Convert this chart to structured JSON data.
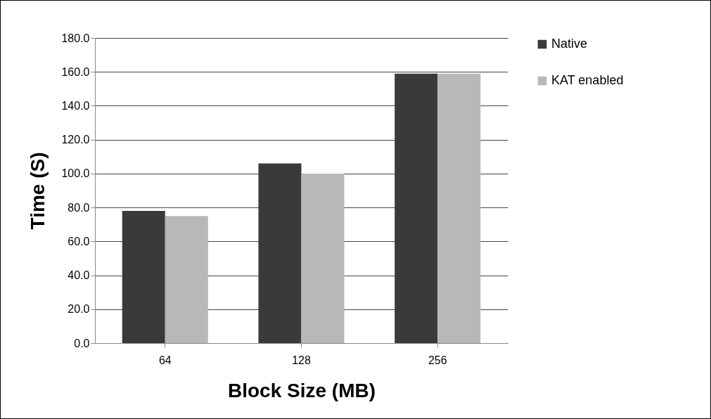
{
  "chart_data": {
    "type": "bar",
    "xlabel": "Block Size (MB)",
    "ylabel": "Time (S)",
    "categories": [
      "64",
      "128",
      "256"
    ],
    "series": [
      {
        "name": "Native",
        "color": "#3a3a3a",
        "values": [
          78,
          106,
          159
        ]
      },
      {
        "name": "KAT enabled",
        "color": "#b8b8b8",
        "values": [
          75,
          100,
          159
        ]
      }
    ],
    "ylim": [
      0,
      180
    ],
    "yticks": [
      {
        "value": 0,
        "label": "0.0"
      },
      {
        "value": 20,
        "label": "20.0"
      },
      {
        "value": 40,
        "label": "40.0"
      },
      {
        "value": 60,
        "label": "60.0"
      },
      {
        "value": 80,
        "label": "80.0"
      },
      {
        "value": 100,
        "label": "100.0"
      },
      {
        "value": 120,
        "label": "120.0"
      },
      {
        "value": 140,
        "label": "140.0"
      },
      {
        "value": 160,
        "label": "160.0"
      },
      {
        "value": 180,
        "label": "180.0"
      }
    ],
    "grid": "y",
    "legend": "right"
  }
}
